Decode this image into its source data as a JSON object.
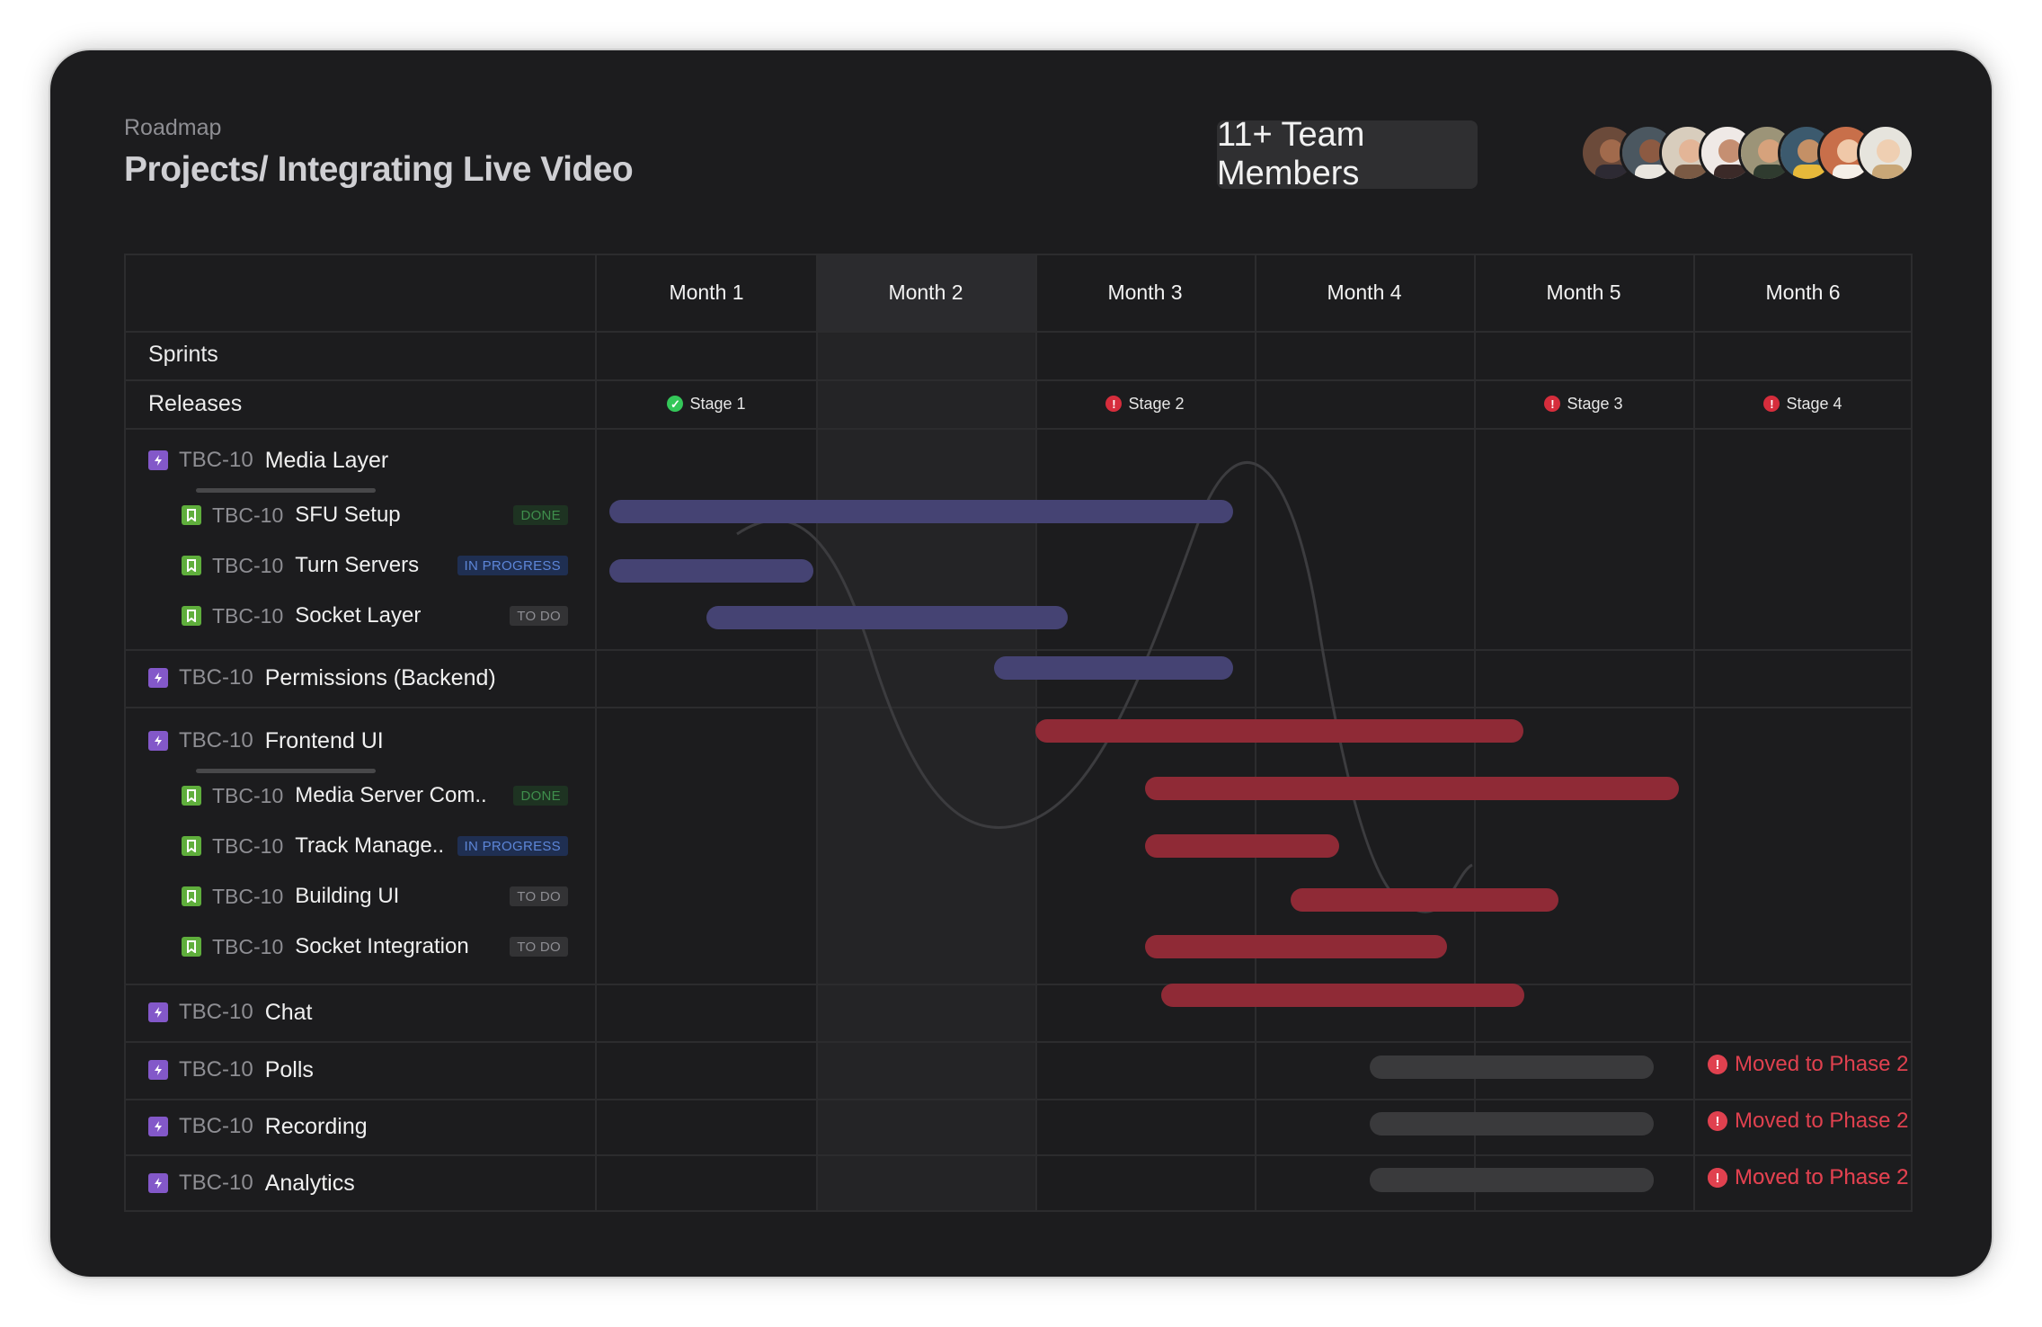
{
  "header": {
    "breadcrumb": "Roadmap",
    "title": "Projects/ Integrating Live Video",
    "team_badge": "11+ Team Members"
  },
  "months": [
    "Month 1",
    "Month 2",
    "Month 3",
    "Month 4",
    "Month 5",
    "Month 6"
  ],
  "rows": {
    "sprints": "Sprints",
    "releases": "Releases"
  },
  "stages": [
    {
      "label": "Stage 1",
      "status": "done",
      "icon": "check-circle-icon"
    },
    {
      "label": "Stage 2",
      "status": "alert",
      "icon": "alert-circle-icon"
    },
    {
      "label": "Stage 3",
      "status": "alert",
      "icon": "alert-circle-icon"
    },
    {
      "label": "Stage 4",
      "status": "alert",
      "icon": "alert-circle-icon"
    }
  ],
  "epics": [
    {
      "key": "TBC-10",
      "name": "Media Layer"
    },
    {
      "key": "TBC-10",
      "name": "Permissions (Backend)"
    },
    {
      "key": "TBC-10",
      "name": "Frontend UI"
    },
    {
      "key": "TBC-10",
      "name": "Chat"
    },
    {
      "key": "TBC-10",
      "name": "Polls"
    },
    {
      "key": "TBC-10",
      "name": "Recording"
    },
    {
      "key": "TBC-10",
      "name": "Analytics"
    }
  ],
  "subtasks": [
    {
      "key": "TBC-10",
      "name": "SFU Setup",
      "status": "DONE"
    },
    {
      "key": "TBC-10",
      "name": "Turn Servers",
      "status": "IN PROGRESS"
    },
    {
      "key": "TBC-10",
      "name": "Socket Layer",
      "status": "TO DO"
    },
    {
      "key": "TBC-10",
      "name": "Media Server Com..",
      "status": "DONE"
    },
    {
      "key": "TBC-10",
      "name": "Track Manage..",
      "status": "IN PROGRESS"
    },
    {
      "key": "TBC-10",
      "name": "Building UI",
      "status": "TO DO"
    },
    {
      "key": "TBC-10",
      "name": "Socket Integration",
      "status": "TO DO"
    }
  ],
  "moved_label": "Moved to Phase 2",
  "colors": {
    "background": "#1c1c1e",
    "epic_bar": "#454373",
    "frontend_bar": "#8f2a36",
    "deferred_bar": "#3a3a3c",
    "alert": "#e0414f",
    "done": "#34c759"
  }
}
